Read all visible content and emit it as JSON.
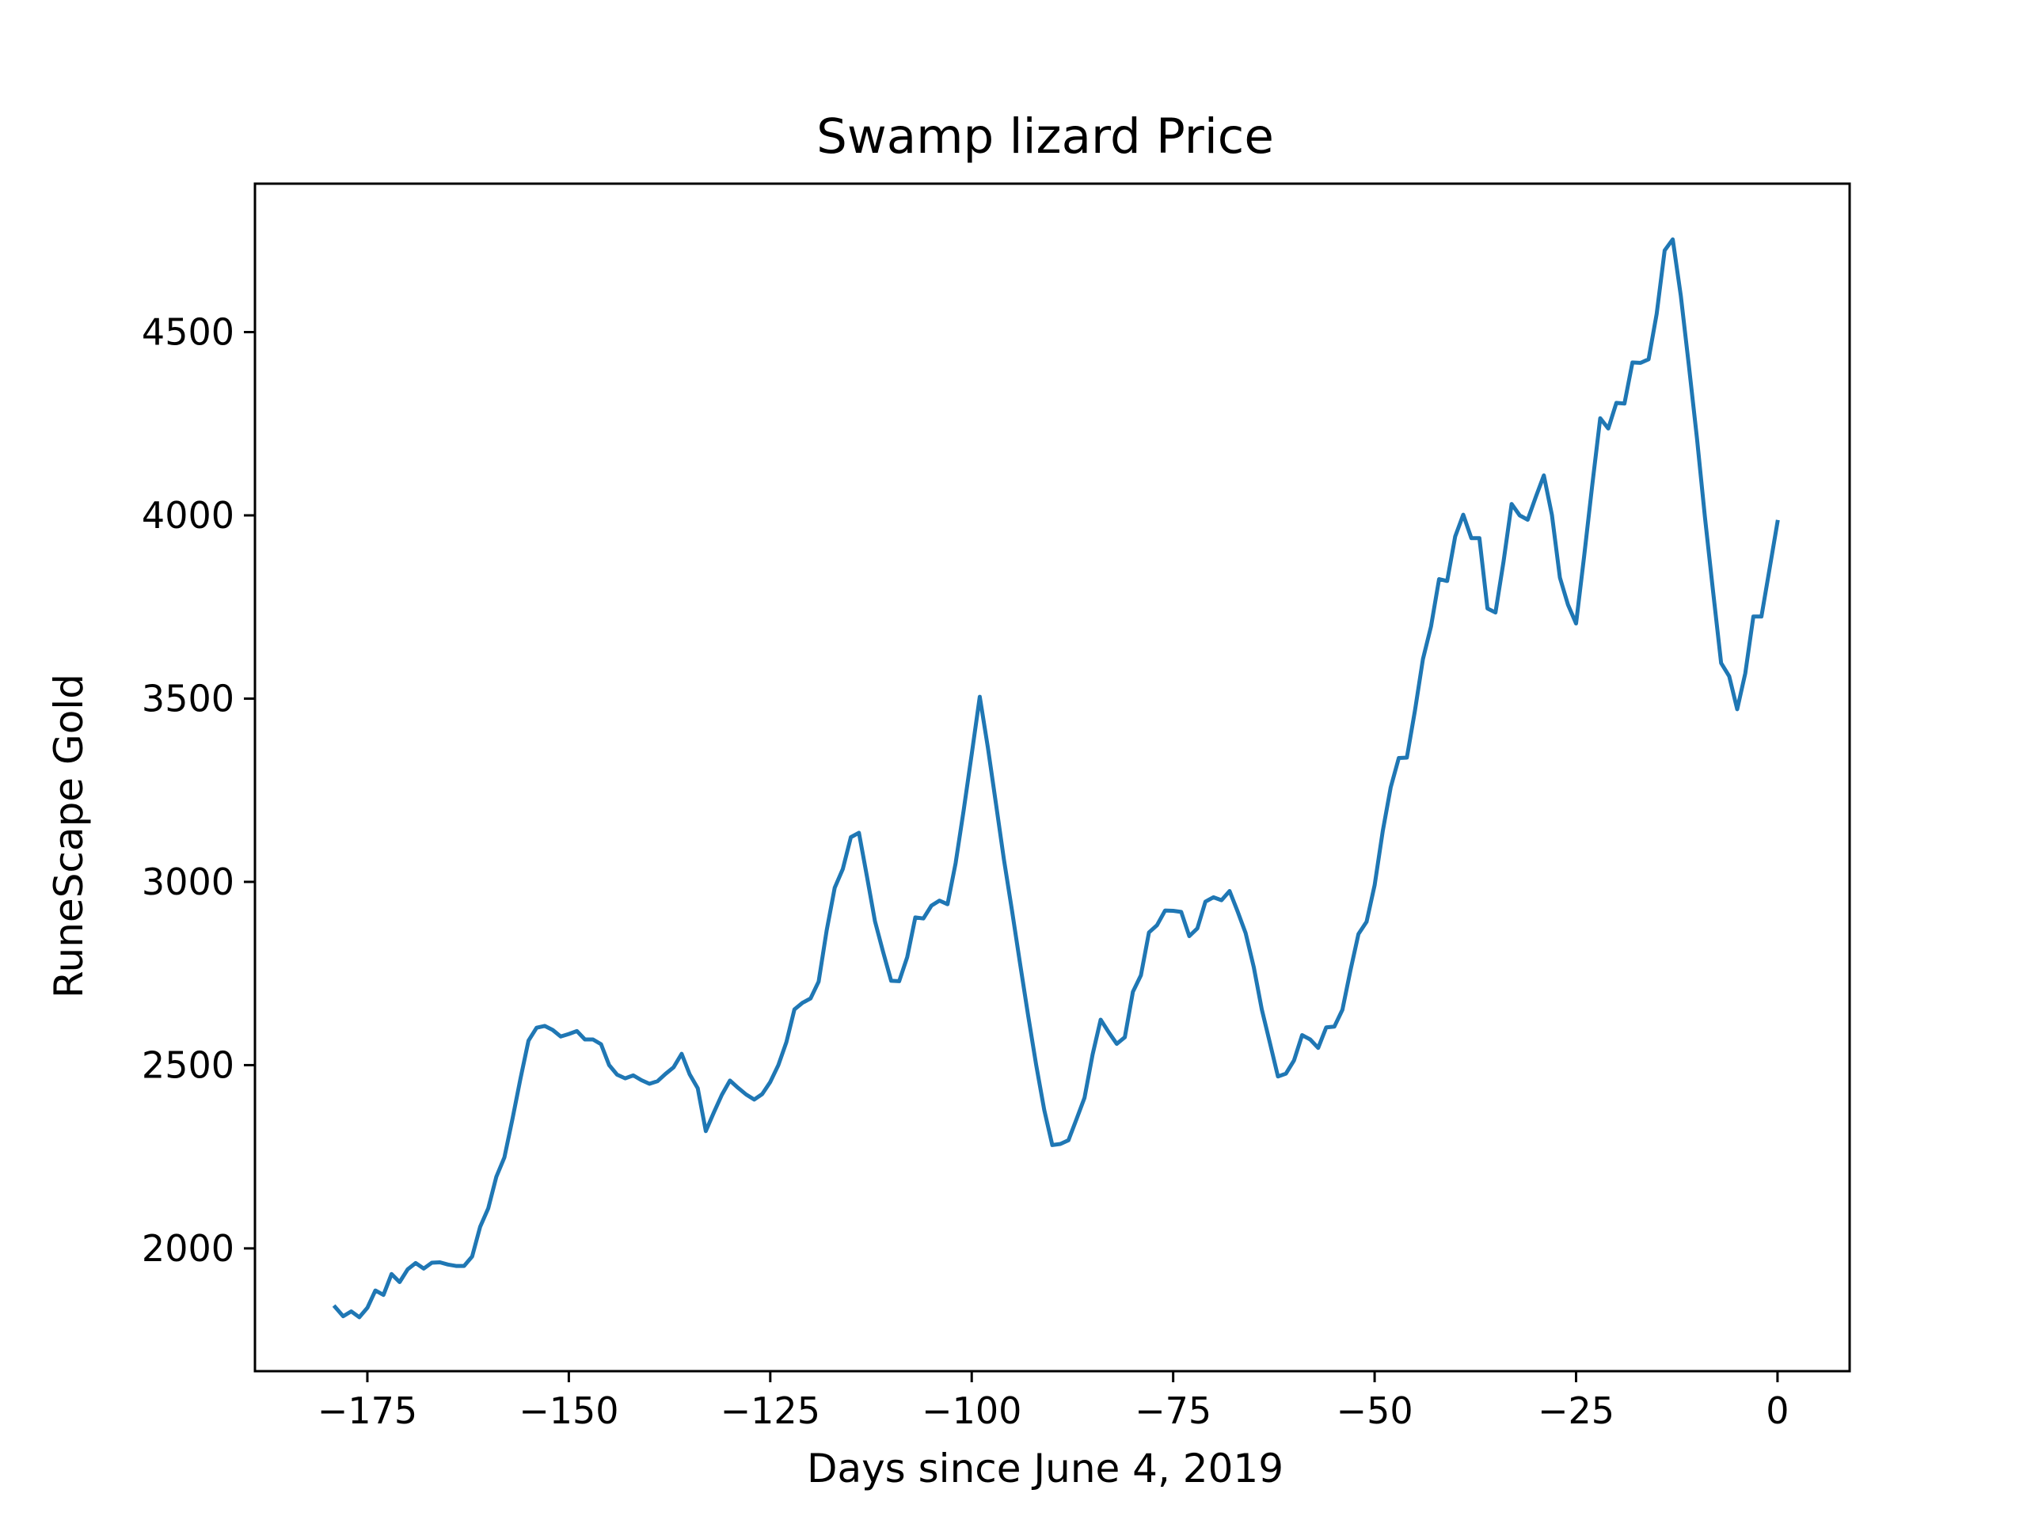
{
  "chart_data": {
    "type": "line",
    "title": "Swamp lizard Price",
    "xlabel": "Days since June 4, 2019",
    "ylabel": "RuneScape Gold",
    "xlim": [
      -188.95,
      8.95
    ],
    "ylim": [
      1665,
      4905
    ],
    "grid": false,
    "legend": "none",
    "x_ticks": [
      -175,
      -150,
      -125,
      -100,
      -75,
      -50,
      -25,
      0
    ],
    "x_tick_labels": [
      "−175",
      "−150",
      "−125",
      "−100",
      "−75",
      "−50",
      "−25",
      "0"
    ],
    "y_ticks": [
      2000,
      2500,
      3000,
      3500,
      4000,
      4500
    ],
    "y_tick_labels": [
      "2000",
      "2500",
      "3000",
      "3500",
      "4000",
      "4500"
    ],
    "colors": {
      "line": "#1f77b4",
      "axes": "#000000",
      "background": "#ffffff"
    },
    "series": [
      {
        "x": [
          -179,
          -178,
          -177,
          -176,
          -175,
          -174,
          -173,
          -172,
          -171,
          -170,
          -169,
          -168,
          -167,
          -166,
          -165,
          -164,
          -163,
          -162,
          -161,
          -160,
          -159,
          -158,
          -157,
          -156,
          -155,
          -154,
          -153,
          -152,
          -151,
          -150,
          -149,
          -148,
          -147,
          -146,
          -145,
          -144,
          -143,
          -142,
          -141,
          -140,
          -139,
          -138,
          -137,
          -136,
          -135,
          -134,
          -133,
          -132,
          -131,
          -130,
          -129,
          -128,
          -127,
          -126,
          -125,
          -124,
          -123,
          -122,
          -121,
          -120,
          -119,
          -118,
          -117,
          -116,
          -115,
          -114,
          -113,
          -112,
          -111,
          -110,
          -109,
          -108,
          -107,
          -106,
          -105,
          -104,
          -103,
          -102,
          -101,
          -100,
          -99,
          -98,
          -97,
          -96,
          -95,
          -94,
          -93,
          -92,
          -91,
          -90,
          -89,
          -88,
          -87,
          -86,
          -85,
          -84,
          -83,
          -82,
          -81,
          -80,
          -79,
          -78,
          -77,
          -76,
          -75,
          -74,
          -73,
          -72,
          -71,
          -70,
          -69,
          -68,
          -67,
          -66,
          -65,
          -64,
          -63,
          -62,
          -61,
          -60,
          -59,
          -58,
          -57,
          -56,
          -55,
          -54,
          -53,
          -52,
          -51,
          -50,
          -49,
          -48,
          -47,
          -46,
          -45,
          -44,
          -43,
          -42,
          -41,
          -40,
          -39,
          -38,
          -37,
          -36,
          -35,
          -34,
          -33,
          -32,
          -31,
          -30,
          -29,
          -28,
          -27,
          -26,
          -25,
          -24,
          -23,
          -22,
          -21,
          -20,
          -19,
          -18,
          -17,
          -16,
          -15,
          -14,
          -13,
          -12,
          -11,
          -10,
          -9,
          -8,
          -7,
          -6,
          -5,
          -4,
          -3,
          -2,
          -1,
          0
        ],
        "values": [
          1840,
          1815,
          1828,
          1812,
          1838,
          1885,
          1873,
          1930,
          1908,
          1943,
          1960,
          1945,
          1961,
          1962,
          1956,
          1952,
          1952,
          1978,
          2059,
          2109,
          2195,
          2248,
          2353,
          2463,
          2567,
          2602,
          2607,
          2596,
          2578,
          2585,
          2593,
          2570,
          2570,
          2557,
          2500,
          2474,
          2464,
          2472,
          2459,
          2449,
          2456,
          2476,
          2494,
          2531,
          2475,
          2437,
          2320,
          2371,
          2419,
          2458,
          2438,
          2420,
          2406,
          2421,
          2454,
          2500,
          2563,
          2652,
          2670,
          2682,
          2728,
          2867,
          2984,
          3035,
          3122,
          3134,
          3015,
          2892,
          2809,
          2730,
          2729,
          2795,
          2903,
          2900,
          2935,
          2949,
          2939,
          3051,
          3196,
          3348,
          3505,
          3367,
          3214,
          3061,
          2922,
          2777,
          2635,
          2501,
          2378,
          2282,
          2285,
          2295,
          2352,
          2411,
          2529,
          2624,
          2590,
          2558,
          2576,
          2700,
          2745,
          2862,
          2882,
          2922,
          2921,
          2918,
          2852,
          2873,
          2946,
          2958,
          2950,
          2975,
          2919,
          2860,
          2768,
          2652,
          2561,
          2469,
          2477,
          2513,
          2582,
          2570,
          2547,
          2603,
          2605,
          2651,
          2758,
          2858,
          2891,
          2991,
          3138,
          3258,
          3338,
          3339,
          3467,
          3608,
          3697,
          3826,
          3821,
          3942,
          4002,
          3938,
          3938,
          3746,
          3735,
          3874,
          4031,
          4000,
          3988,
          4050,
          4109,
          4001,
          3830,
          3756,
          3705,
          3889,
          4080,
          4265,
          4237,
          4307,
          4305,
          4417,
          4416,
          4426,
          4550,
          4723,
          4753,
          4599,
          4408,
          4212,
          3994,
          3793,
          3597,
          3561,
          3471,
          3569,
          3724,
          3724,
          3852,
          3982
        ]
      }
    ]
  }
}
